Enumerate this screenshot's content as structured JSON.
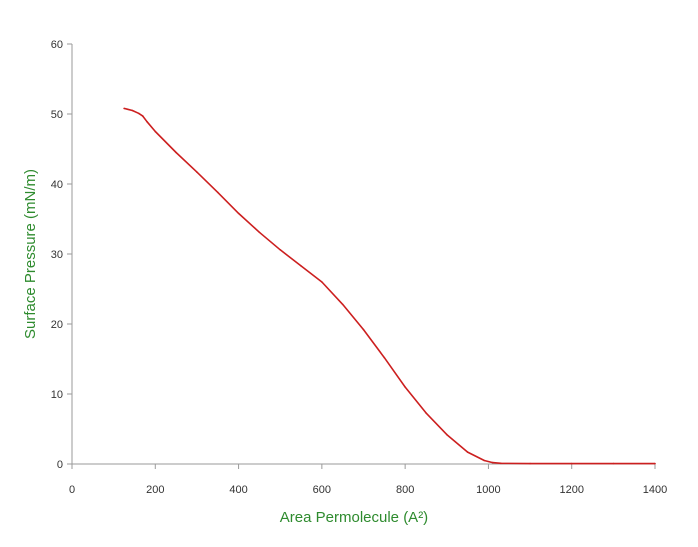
{
  "chart_data": {
    "type": "line",
    "title": "",
    "xlabel": "Area Permolecule (A²)",
    "ylabel": "Surface Pressure (mN/m)",
    "xlim": [
      0,
      1400
    ],
    "ylim": [
      0,
      60
    ],
    "x_ticks": [
      "0",
      "200",
      "400",
      "600",
      "800",
      "1000",
      "1200",
      "1400"
    ],
    "y_ticks": [
      "0",
      "10",
      "20",
      "30",
      "40",
      "50",
      "60"
    ],
    "grid": false,
    "legend": "none",
    "series": [
      {
        "color": "#cc1f1f",
        "points": [
          [
            125,
            50.8
          ],
          [
            145,
            50.5
          ],
          [
            160,
            50.1
          ],
          [
            170,
            49.7
          ],
          [
            180,
            48.9
          ],
          [
            200,
            47.5
          ],
          [
            250,
            44.5
          ],
          [
            300,
            41.7
          ],
          [
            350,
            38.8
          ],
          [
            400,
            35.8
          ],
          [
            450,
            33.1
          ],
          [
            500,
            30.6
          ],
          [
            550,
            28.3
          ],
          [
            600,
            26.0
          ],
          [
            650,
            22.8
          ],
          [
            700,
            19.2
          ],
          [
            750,
            15.2
          ],
          [
            800,
            11.0
          ],
          [
            850,
            7.3
          ],
          [
            900,
            4.2
          ],
          [
            950,
            1.7
          ],
          [
            990,
            0.5
          ],
          [
            1010,
            0.2
          ],
          [
            1030,
            0.1
          ],
          [
            1100,
            0.05
          ],
          [
            1200,
            0.05
          ],
          [
            1300,
            0.05
          ],
          [
            1400,
            0.05
          ]
        ]
      }
    ]
  }
}
